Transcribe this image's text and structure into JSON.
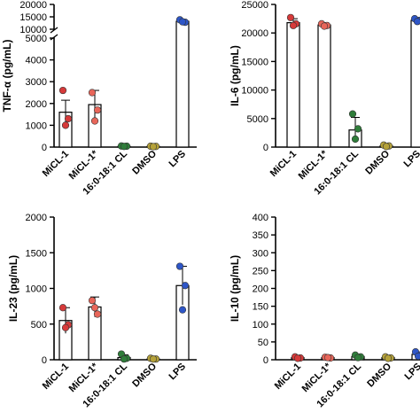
{
  "colors": {
    "MiCL-1": "#d63a3a",
    "MiCL-1*": "#e8665a",
    "16:0-18:1 CL": "#2f7d3a",
    "DMSO": "#b5a23a",
    "LPS": "#2e56c7"
  },
  "chart_data": [
    {
      "id": "tnf",
      "type": "bar",
      "ylabel": "TNF-α (pg/mL)",
      "axis_break": {
        "lower": [
          0,
          5000
        ],
        "upper": [
          10000,
          20000
        ]
      },
      "yticks": [
        0,
        1000,
        2000,
        3000,
        4000,
        5000,
        10000,
        15000,
        20000
      ],
      "categories": [
        "MiCL-1",
        "MiCL-1*",
        "16:0-18:1 CL",
        "DMSO",
        "LPS"
      ],
      "values": [
        1600,
        1950,
        30,
        30,
        13200
      ],
      "errors": [
        550,
        650,
        20,
        20,
        700
      ],
      "points": [
        [
          2600,
          1300,
          1000
        ],
        [
          2500,
          1700,
          1200
        ],
        [
          50,
          40,
          30
        ],
        [
          40,
          30,
          20
        ],
        [
          13800,
          12800,
          13000
        ]
      ]
    },
    {
      "id": "il6",
      "type": "bar",
      "ylabel": "IL-6 (pg/mL)",
      "ylim": [
        0,
        25000
      ],
      "yticks": [
        0,
        5000,
        10000,
        15000,
        20000,
        25000
      ],
      "categories": [
        "MiCL-1",
        "MiCL-1*",
        "16:0-18:1 CL",
        "DMSO",
        "LPS"
      ],
      "values": [
        21800,
        21400,
        3000,
        200,
        22200
      ],
      "errors": [
        700,
        400,
        2200,
        150,
        500
      ],
      "points": [
        [
          22700,
          21600,
          21300
        ],
        [
          21600,
          21300,
          21200
        ],
        [
          5800,
          3200,
          1400
        ],
        [
          350,
          200,
          100
        ],
        [
          22500,
          22200,
          22000
        ]
      ]
    },
    {
      "id": "il23",
      "type": "bar",
      "ylabel": "IL-23 (pg/mL)",
      "ylim": [
        0,
        2000
      ],
      "yticks": [
        0,
        500,
        1000,
        1500,
        2000
      ],
      "categories": [
        "MiCL-1",
        "MiCL-1*",
        "16:0-18:1 CL",
        "DMSO",
        "LPS"
      ],
      "values": [
        550,
        740,
        30,
        10,
        1040
      ],
      "errors": [
        180,
        140,
        40,
        10,
        270
      ],
      "points": [
        [
          730,
          490,
          450
        ],
        [
          830,
          640,
          730
        ],
        [
          80,
          20,
          10
        ],
        [
          20,
          10,
          10
        ],
        [
          1310,
          1040,
          700
        ]
      ]
    },
    {
      "id": "il10",
      "type": "bar",
      "ylabel": "IL-10 (pg/mL)",
      "ylim": [
        0,
        400
      ],
      "yticks": [
        0,
        50,
        100,
        150,
        200,
        250,
        300,
        350,
        400
      ],
      "categories": [
        "MiCL-1",
        "MiCL-1*",
        "16:0-18:1 CL",
        "DMSO",
        "LPS"
      ],
      "values": [
        6,
        6,
        9,
        6,
        15
      ],
      "errors": [
        3,
        2,
        4,
        3,
        6
      ],
      "points": [
        [
          8,
          5,
          4
        ],
        [
          7,
          5,
          6
        ],
        [
          13,
          8,
          6
        ],
        [
          8,
          5,
          4
        ],
        [
          22,
          14,
          10
        ]
      ]
    }
  ]
}
